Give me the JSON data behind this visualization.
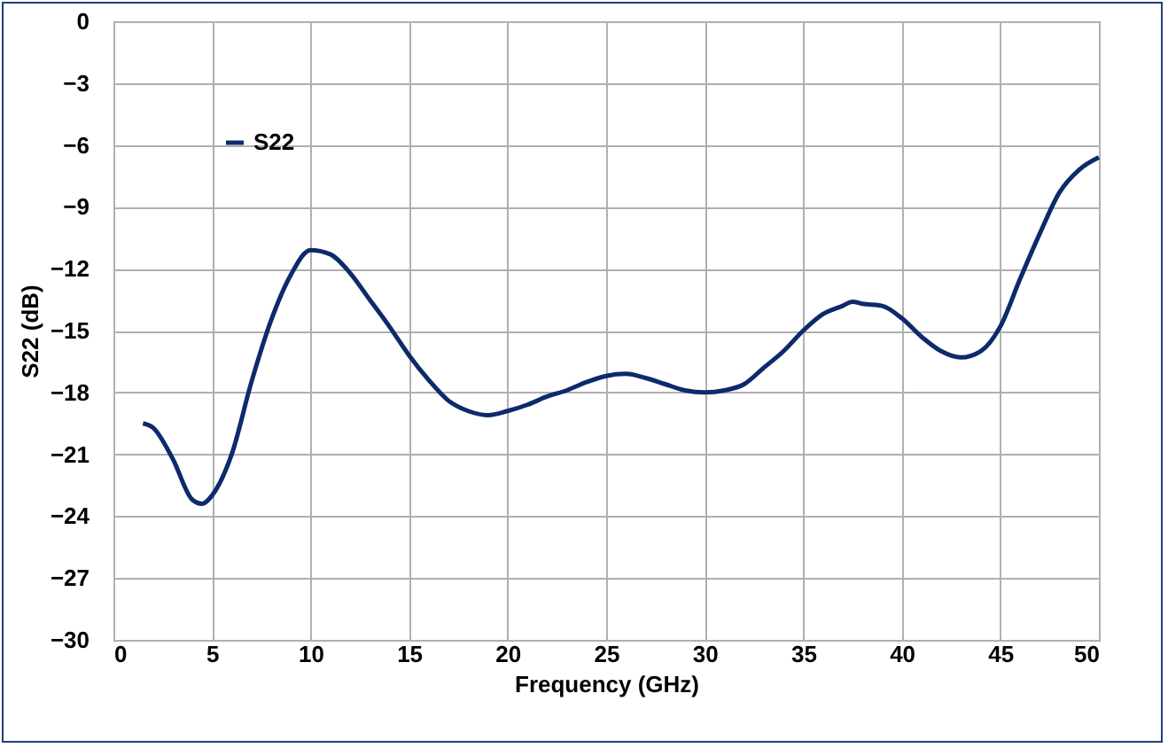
{
  "chart_data": {
    "type": "line",
    "xlabel": "Frequency (GHz)",
    "ylabel": "S22 (dB)",
    "x": [
      1.5,
      2,
      3,
      4,
      4.5,
      5,
      6,
      7,
      8,
      9,
      10,
      11,
      12,
      13,
      14,
      15,
      16,
      17,
      18,
      19,
      20,
      21,
      22,
      23,
      24,
      25,
      26,
      27,
      28,
      29,
      30,
      31,
      32,
      33,
      34,
      35,
      36,
      37,
      37.5,
      38,
      39,
      40,
      41,
      42,
      43,
      44,
      45,
      46,
      47,
      48,
      49,
      50
    ],
    "series": [
      {
        "name": "S22",
        "color": "#0d2a6b",
        "values": [
          -19.5,
          -19.7,
          -21.2,
          -23.2,
          -23.4,
          -23.0,
          -21.0,
          -17.5,
          -14.5,
          -12.3,
          -11.1,
          -11.3,
          -12.2,
          -13.5,
          -14.8,
          -16.2,
          -17.4,
          -18.4,
          -18.9,
          -19.1,
          -18.9,
          -18.6,
          -18.2,
          -17.9,
          -17.5,
          -17.2,
          -17.1,
          -17.3,
          -17.6,
          -17.9,
          -18.0,
          -17.9,
          -17.6,
          -16.8,
          -16.0,
          -15.0,
          -14.2,
          -13.8,
          -13.6,
          -13.7,
          -13.8,
          -14.4,
          -15.3,
          -16.0,
          -16.3,
          -16.0,
          -14.8,
          -12.5,
          -10.3,
          -8.3,
          -7.2,
          -6.6
        ]
      }
    ],
    "xlim": [
      0,
      50
    ],
    "xticks": [
      0,
      5,
      10,
      15,
      20,
      25,
      30,
      35,
      40,
      45,
      50
    ],
    "ylim": [
      -30,
      0
    ],
    "yticks": [
      -30,
      -27,
      -24,
      -21,
      -18,
      -15,
      -12,
      -9,
      -6,
      -3,
      0
    ],
    "grid": true,
    "legend": "top left",
    "marker": "none",
    "line_style": "solid"
  }
}
